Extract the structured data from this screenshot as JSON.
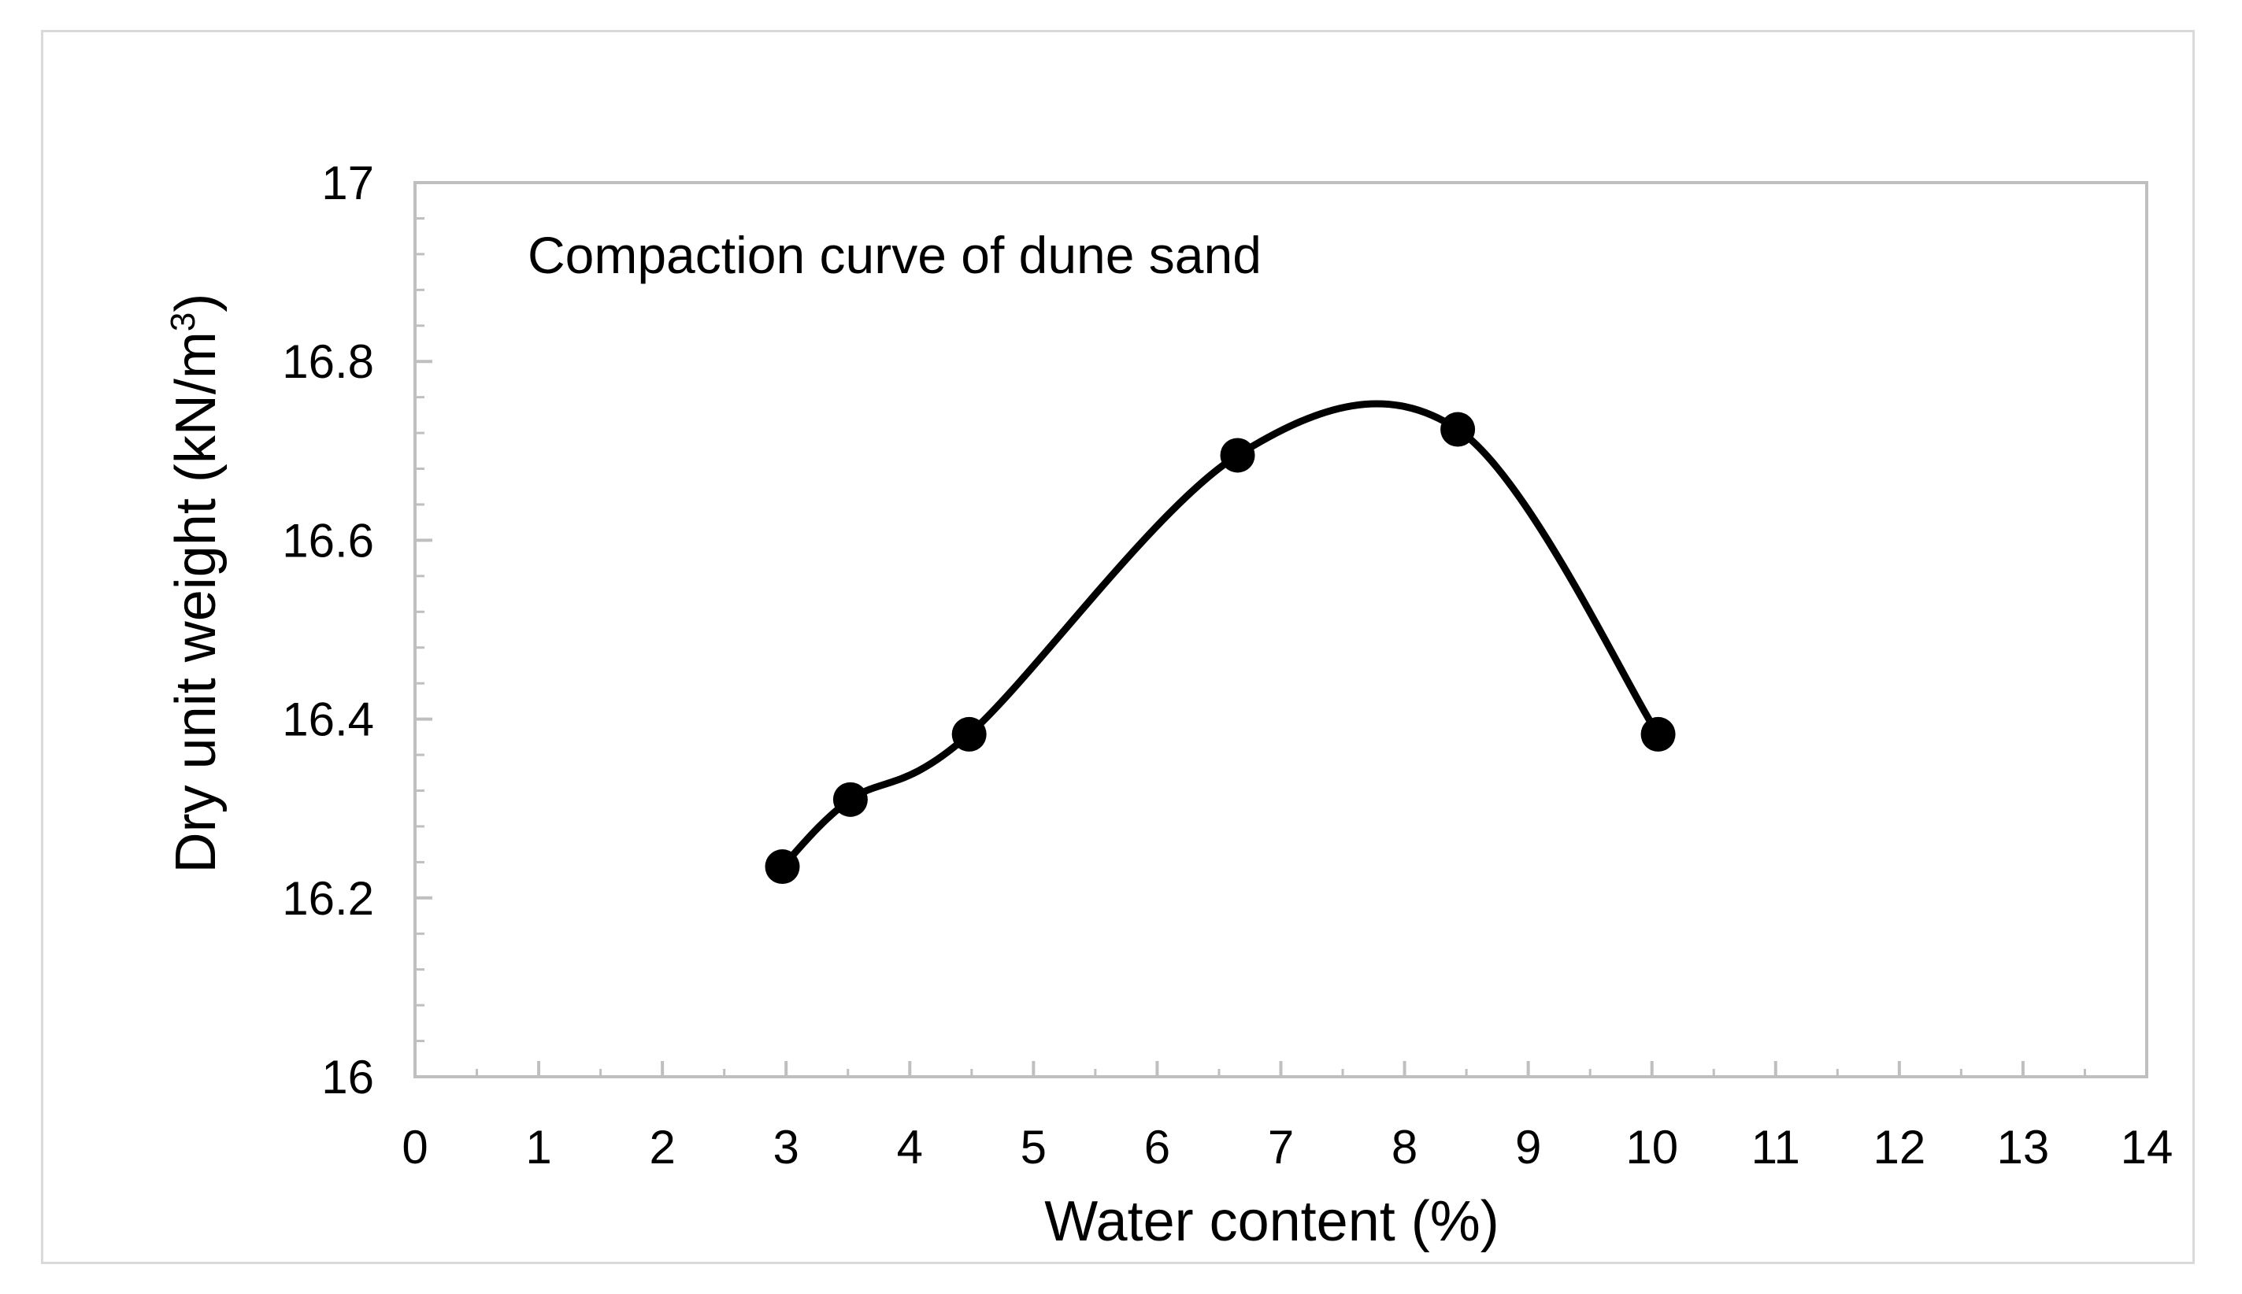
{
  "chart_data": {
    "type": "scatter",
    "annotation": "Compaction curve of dune sand",
    "xlabel": "Water content (%)",
    "ylabel": "Dry unit weight  (kN/m",
    "ylabel_superscript": "3",
    "ylabel_suffix": ")",
    "xlim": [
      0,
      14
    ],
    "ylim": [
      16,
      17
    ],
    "x_ticks": [
      "0",
      "1",
      "2",
      "3",
      "4",
      "5",
      "6",
      "7",
      "8",
      "9",
      "10",
      "11",
      "12",
      "13",
      "14"
    ],
    "y_ticks": [
      "16",
      "16.2",
      "16.4",
      "16.6",
      "16.8",
      "17"
    ],
    "grid": false,
    "legend": "none",
    "smooth_line": true,
    "series": [
      {
        "x": [
          2.97,
          3.52,
          4.48,
          6.65,
          8.43,
          10.05
        ],
        "y": [
          16.235,
          16.31,
          16.383,
          16.695,
          16.724,
          16.383
        ]
      }
    ],
    "marker_color": "#000000",
    "axis_color": "#bfbfbf"
  }
}
